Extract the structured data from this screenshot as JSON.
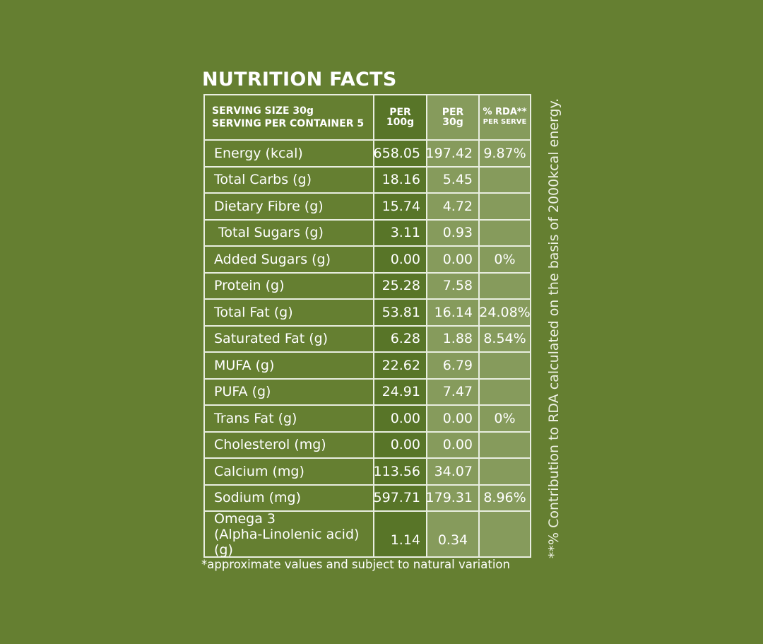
{
  "title": "NUTRITION FACTS",
  "header": {
    "serving_size": "SERVING SIZE 30g",
    "servings_per_container": "SERVING PER CONTAINER 5",
    "col_100_top": "PER",
    "col_100_bot": "100g",
    "col_30_top": "PER",
    "col_30_bot": "30g",
    "col_rda_top": "% RDA**",
    "col_rda_bot": "PER SERVE"
  },
  "rows": [
    {
      "label": "Energy (kcal)",
      "per100": "658.05",
      "per30": "197.42",
      "rda": "9.87%"
    },
    {
      "label": "Total Carbs (g)",
      "per100": "18.16",
      "per30": "5.45",
      "rda": ""
    },
    {
      "label": "Dietary Fibre (g)",
      "per100": "15.74",
      "per30": "4.72",
      "rda": ""
    },
    {
      "label": " Total Sugars (g)",
      "per100": "3.11",
      "per30": "0.93",
      "rda": ""
    },
    {
      "label": "Added Sugars (g)",
      "per100": "0.00",
      "per30": "0.00",
      "rda": "0%"
    },
    {
      "label": "Protein (g)",
      "per100": "25.28",
      "per30": "7.58",
      "rda": ""
    },
    {
      "label": "Total Fat (g)",
      "per100": "53.81",
      "per30": "16.14",
      "rda": "24.08%"
    },
    {
      "label": "Saturated Fat (g)",
      "per100": "6.28",
      "per30": "1.88",
      "rda": "8.54%"
    },
    {
      "label": "MUFA (g)",
      "per100": "22.62",
      "per30": "6.79",
      "rda": ""
    },
    {
      "label": "PUFA (g)",
      "per100": "24.91",
      "per30": "7.47",
      "rda": ""
    },
    {
      "label": "Trans Fat (g)",
      "per100": "0.00",
      "per30": "0.00",
      "rda": "0%"
    },
    {
      "label": "Cholesterol (mg)",
      "per100": "0.00",
      "per30": "0.00",
      "rda": ""
    },
    {
      "label": "Calcium (mg)",
      "per100": "113.56",
      "per30": "34.07",
      "rda": ""
    },
    {
      "label": "Sodium (mg)",
      "per100": "597.71",
      "per30": "179.31",
      "rda": "8.96%"
    }
  ],
  "omega": {
    "label_line1": "Omega 3",
    "label_line2": "(Alpha-Linolenic acid) (g)",
    "per100": "1.14",
    "per30": "0.34",
    "rda": ""
  },
  "footnote": "*approximate values and subject to natural variation",
  "side_note": "**% Contribution to RDA calculated on the basis of 2000kcal energy.",
  "colors": {
    "background": "#657f31",
    "col_100_bg": "#587528",
    "col_light_bg": "#869b5c",
    "border": "#e9eee0"
  }
}
